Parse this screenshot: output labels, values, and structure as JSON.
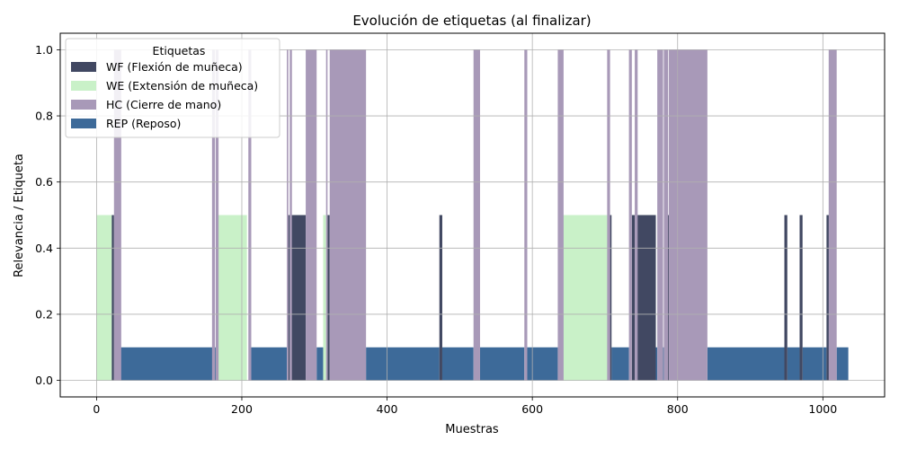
{
  "chart_data": {
    "type": "bar",
    "title": "Evolución de etiquetas (al finalizar)",
    "xlabel": "Muestras",
    "ylabel": "Relevancia / Etiqueta",
    "xlim": [
      -50,
      1085
    ],
    "ylim": [
      -0.05,
      1.05
    ],
    "xticks": [
      0,
      200,
      400,
      600,
      800,
      1000
    ],
    "yticks": [
      0.0,
      0.2,
      0.4,
      0.6,
      0.8,
      1.0
    ],
    "xtick_labels": [
      "0",
      "200",
      "400",
      "600",
      "800",
      "1000"
    ],
    "ytick_labels": [
      "0.0",
      "0.2",
      "0.4",
      "0.6",
      "0.8",
      "1.0"
    ],
    "grid": true,
    "legend": {
      "title": "Etiquetas",
      "placement": "upper-left"
    },
    "series": [
      {
        "name": "WF (Flexión de muñeca)",
        "key": "WF",
        "value": 0.5,
        "color": "#414862",
        "segments": [
          [
            21,
            24
          ],
          [
            27,
            29
          ],
          [
            264,
            266
          ],
          [
            268,
            288
          ],
          [
            290,
            292
          ],
          [
            318,
            321
          ],
          [
            472,
            476
          ],
          [
            707,
            709
          ],
          [
            737,
            741
          ],
          [
            744,
            770
          ],
          [
            785,
            788
          ],
          [
            947,
            951
          ],
          [
            968,
            972
          ],
          [
            1005,
            1009
          ]
        ]
      },
      {
        "name": "WE (Extensión de muñeca)",
        "key": "WE",
        "value": 0.5,
        "color": "#c9f1c8",
        "segments": [
          [
            0,
            21
          ],
          [
            166,
            207
          ],
          [
            312,
            316
          ],
          [
            640,
            704
          ]
        ]
      },
      {
        "name": "HC (Cierre de mano)",
        "key": "HC",
        "value": 1.0,
        "color": "#a899b8",
        "segments": [
          [
            24,
            34
          ],
          [
            159,
            163
          ],
          [
            164,
            168
          ],
          [
            209,
            213
          ],
          [
            262,
            264
          ],
          [
            266,
            269
          ],
          [
            288,
            303
          ],
          [
            316,
            318
          ],
          [
            321,
            371
          ],
          [
            519,
            528
          ],
          [
            589,
            593
          ],
          [
            635,
            643
          ],
          [
            703,
            707
          ],
          [
            733,
            737
          ],
          [
            741,
            745
          ],
          [
            772,
            780
          ],
          [
            781,
            787
          ],
          [
            788,
            841
          ],
          [
            1008,
            1019
          ]
        ]
      },
      {
        "name": "REP (Reposo)",
        "key": "REP",
        "value": 0.1,
        "color": "#3d6a99",
        "segments": [
          [
            33,
            164
          ],
          [
            213,
            262
          ],
          [
            303,
            312
          ],
          [
            371,
            472
          ],
          [
            476,
            519
          ],
          [
            528,
            589
          ],
          [
            593,
            635
          ],
          [
            709,
            733
          ],
          [
            770,
            772
          ],
          [
            780,
            781
          ],
          [
            841,
            947
          ],
          [
            951,
            968
          ],
          [
            972,
            1005
          ],
          [
            1019,
            1035
          ]
        ]
      }
    ]
  }
}
